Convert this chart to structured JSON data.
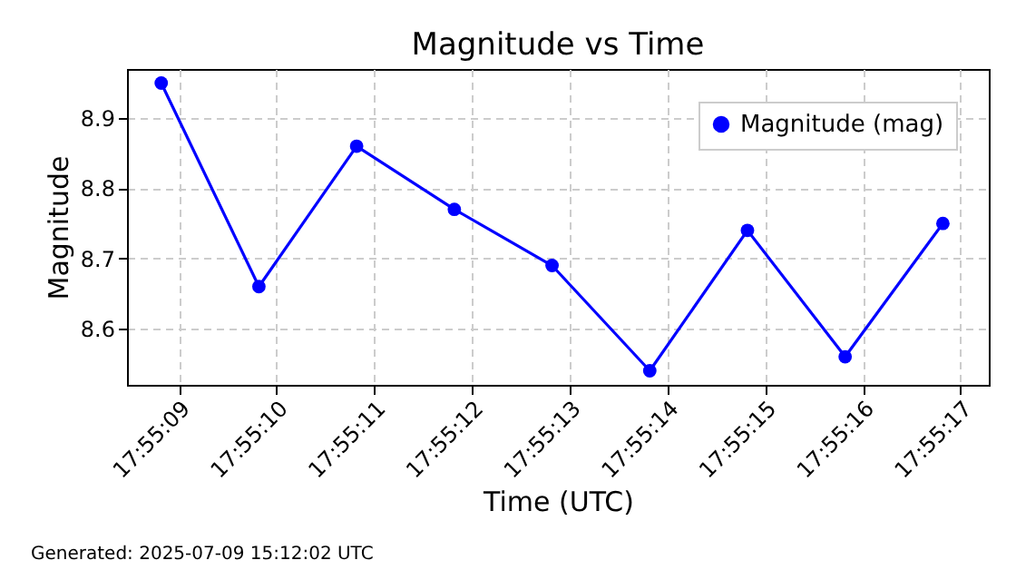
{
  "chart_data": {
    "type": "line",
    "title": "Magnitude vs Time",
    "xlabel": "Time (UTC)",
    "ylabel": "Magnitude",
    "x": [
      17.9191167,
      17.9193944,
      17.9196722,
      17.91995,
      17.9202278,
      17.9205056,
      17.9207833,
      17.9210611,
      17.9213389
    ],
    "series": [
      {
        "name": "Magnitude (mag)",
        "color": "#0000ff",
        "values": [
          8.95,
          8.66,
          8.86,
          8.77,
          8.69,
          8.54,
          8.74,
          8.56,
          8.75
        ]
      }
    ],
    "xlim": [
      17.9190194,
      17.9214694
    ],
    "xticks": [
      {
        "value": 17.9191667,
        "label": "17:55:09"
      },
      {
        "value": 17.9194444,
        "label": "17:55:10"
      },
      {
        "value": 17.9197222,
        "label": "17:55:11"
      },
      {
        "value": 17.92,
        "label": "17:55:12"
      },
      {
        "value": 17.9202778,
        "label": "17:55:13"
      },
      {
        "value": 17.9205556,
        "label": "17:55:14"
      },
      {
        "value": 17.9208333,
        "label": "17:55:15"
      },
      {
        "value": 17.9211111,
        "label": "17:55:16"
      },
      {
        "value": 17.9213889,
        "label": "17:55:17"
      }
    ],
    "ylim": [
      8.52,
      8.97
    ],
    "yticks": [
      8.6,
      8.7,
      8.8,
      8.9
    ],
    "grid": true,
    "legend": "top right",
    "marker": "circle",
    "line_style": "solid",
    "annotations": [
      "Generated: 2025-07-09 15:12:02 UTC"
    ]
  }
}
